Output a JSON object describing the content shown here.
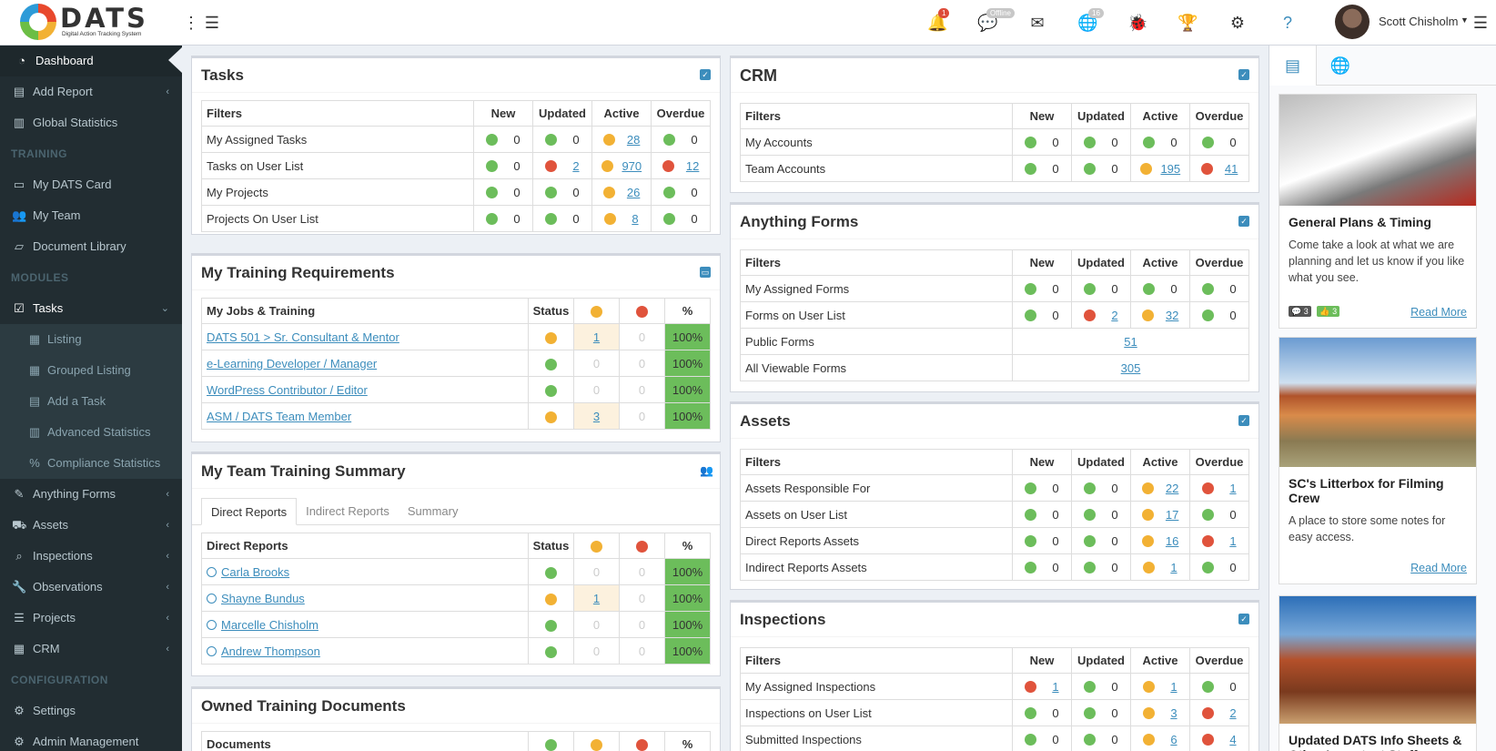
{
  "header": {
    "logo_text": "DATS",
    "logo_subtitle": "Digital Action Tracking System",
    "notifications_badge": "1",
    "chat_badge": "Offline",
    "globe_badge": "16",
    "user_name": "Scott Chisholm"
  },
  "sidebar": {
    "items": [
      {
        "label": "Dashboard",
        "icon": "dashboard-icon"
      },
      {
        "label": "Add Report",
        "icon": "file-icon"
      },
      {
        "label": "Global Statistics",
        "icon": "bar-chart-icon"
      }
    ],
    "training_header": "TRAINING",
    "training": [
      {
        "label": "My DATS Card",
        "icon": "id-card-icon"
      },
      {
        "label": "My Team",
        "icon": "users-icon"
      },
      {
        "label": "Document Library",
        "icon": "folder-icon"
      }
    ],
    "modules_header": "MODULES",
    "tasks": "Tasks",
    "task_sub": [
      {
        "label": "Listing"
      },
      {
        "label": "Grouped Listing"
      },
      {
        "label": "Add a Task"
      },
      {
        "label": "Advanced Statistics"
      },
      {
        "label": "Compliance Statistics"
      }
    ],
    "modules": [
      {
        "label": "Anything Forms"
      },
      {
        "label": "Assets"
      },
      {
        "label": "Inspections"
      },
      {
        "label": "Observations"
      },
      {
        "label": "Projects"
      },
      {
        "label": "CRM"
      }
    ],
    "config_header": "CONFIGURATION",
    "config": [
      {
        "label": "Settings"
      },
      {
        "label": "Admin Management"
      }
    ]
  },
  "cols": {
    "filters": "Filters",
    "new": "New",
    "updated": "Updated",
    "active": "Active",
    "overdue": "Overdue"
  },
  "tasks": {
    "title": "Tasks",
    "rows": [
      {
        "label": "My Assigned Tasks",
        "new": "0",
        "updated": "0",
        "active": "28",
        "overdue": "0"
      },
      {
        "label": "Tasks on User List",
        "new": "0",
        "updated": "2",
        "active": "970",
        "overdue": "12"
      },
      {
        "label": "My Projects",
        "new": "0",
        "updated": "0",
        "active": "26",
        "overdue": "0"
      },
      {
        "label": "Projects On User List",
        "new": "0",
        "updated": "0",
        "active": "8",
        "overdue": "0"
      }
    ]
  },
  "training_req": {
    "title": "My Training Requirements",
    "col_jobs": "My Jobs & Training",
    "col_status": "Status",
    "col_pct": "%",
    "rows": [
      {
        "label": "DATS 501 > Sr. Consultant & Mentor",
        "orange": "1",
        "red": "0",
        "pct": "100%"
      },
      {
        "label": "e-Learning Developer / Manager",
        "orange": "0",
        "red": "0",
        "pct": "100%"
      },
      {
        "label": "WordPress Contributor / Editor",
        "orange": "0",
        "red": "0",
        "pct": "100%"
      },
      {
        "label": "ASM / DATS Team Member",
        "orange": "3",
        "red": "0",
        "pct": "100%"
      }
    ]
  },
  "team_summary": {
    "title": "My Team Training Summary",
    "tabs": [
      "Direct Reports",
      "Indirect Reports",
      "Summary"
    ],
    "col_reports": "Direct Reports",
    "col_status": "Status",
    "col_pct": "%",
    "rows": [
      {
        "label": "Carla Brooks",
        "orange": "0",
        "red": "0",
        "pct": "100%"
      },
      {
        "label": "Shayne Bundus",
        "orange": "1",
        "red": "0",
        "pct": "100%"
      },
      {
        "label": "Marcelle Chisholm",
        "orange": "0",
        "red": "0",
        "pct": "100%"
      },
      {
        "label": "Andrew Thompson",
        "orange": "0",
        "red": "0",
        "pct": "100%"
      }
    ]
  },
  "owned_docs": {
    "title": "Owned Training Documents",
    "col_docs": "Documents",
    "col_pct": "%"
  },
  "crm": {
    "title": "CRM",
    "rows": [
      {
        "label": "My Accounts",
        "new": "0",
        "updated": "0",
        "active": "0",
        "overdue": "0"
      },
      {
        "label": "Team Accounts",
        "new": "0",
        "updated": "0",
        "active": "195",
        "overdue": "41"
      }
    ]
  },
  "forms": {
    "title": "Anything Forms",
    "rows": [
      {
        "label": "My Assigned Forms",
        "new": "0",
        "updated": "0",
        "active": "0",
        "overdue": "0"
      },
      {
        "label": "Forms on User List",
        "new": "0",
        "updated": "2",
        "active": "32",
        "overdue": "0"
      }
    ],
    "public_label": "Public Forms",
    "public_count": "51",
    "viewable_label": "All Viewable Forms",
    "viewable_count": "305"
  },
  "assets": {
    "title": "Assets",
    "rows": [
      {
        "label": "Assets Responsible For",
        "new": "0",
        "updated": "0",
        "active": "22",
        "overdue": "1"
      },
      {
        "label": "Assets on User List",
        "new": "0",
        "updated": "0",
        "active": "17",
        "overdue": "0"
      },
      {
        "label": "Direct Reports Assets",
        "new": "0",
        "updated": "0",
        "active": "16",
        "overdue": "1"
      },
      {
        "label": "Indirect Reports Assets",
        "new": "0",
        "updated": "0",
        "active": "1",
        "overdue": "0"
      }
    ]
  },
  "inspections": {
    "title": "Inspections",
    "rows": [
      {
        "label": "My Assigned Inspections",
        "new": "1",
        "updated": "0",
        "active": "1",
        "overdue": "0"
      },
      {
        "label": "Inspections on User List",
        "new": "0",
        "updated": "0",
        "active": "3",
        "overdue": "2"
      },
      {
        "label": "Submitted Inspections",
        "new": "0",
        "updated": "0",
        "active": "6",
        "overdue": "4"
      }
    ]
  },
  "news": [
    {
      "title": "General Plans & Timing",
      "body": "Come take a look at what we are planning and let us know if you like what you see.",
      "comments": "3",
      "likes": "3",
      "link": "Read More"
    },
    {
      "title": "SC's Litterbox for Filming Crew",
      "body": "A place to store some notes for easy access.",
      "link": "Read More"
    },
    {
      "title": "Updated DATS Info Sheets & Other Important Stuff"
    }
  ],
  "colors": {
    "green": "#6cbd5b",
    "orange": "#f2b134",
    "red": "#e0533c",
    "accent": "#3c8dbc",
    "sidebar": "#222d32"
  }
}
